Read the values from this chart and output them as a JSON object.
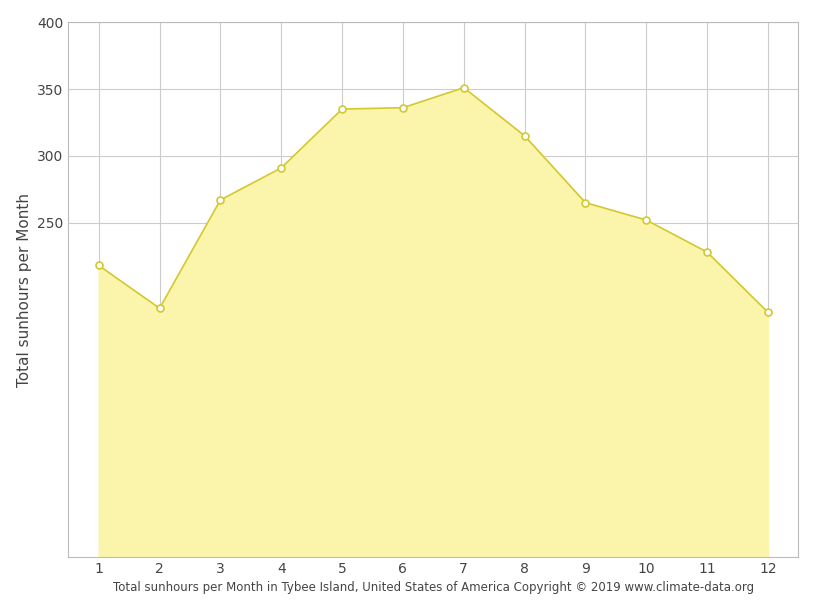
{
  "months": [
    1,
    2,
    3,
    4,
    5,
    6,
    7,
    8,
    9,
    10,
    11,
    12
  ],
  "sunhours": [
    218,
    186,
    267,
    291,
    335,
    336,
    351,
    315,
    265,
    252,
    228,
    183
  ],
  "fill_color": "#FAF5AA",
  "line_color": "#D4C830",
  "marker_color": "#FFFFFF",
  "marker_edge_color": "#D4C830",
  "ylabel": "Total sunhours per Month",
  "xlabel": "Total sunhours per Month in Tybee Island, United States of America Copyright © 2019 www.climate-data.org",
  "ylim_bottom": 0,
  "ylim_top": 400,
  "xlim": [
    0.5,
    12.5
  ],
  "yticks": [
    250,
    300,
    350,
    400
  ],
  "xticks": [
    1,
    2,
    3,
    4,
    5,
    6,
    7,
    8,
    9,
    10,
    11,
    12
  ],
  "grid_color": "#cccccc",
  "background_color": "#ffffff",
  "marker_size": 5,
  "line_width": 1.2
}
